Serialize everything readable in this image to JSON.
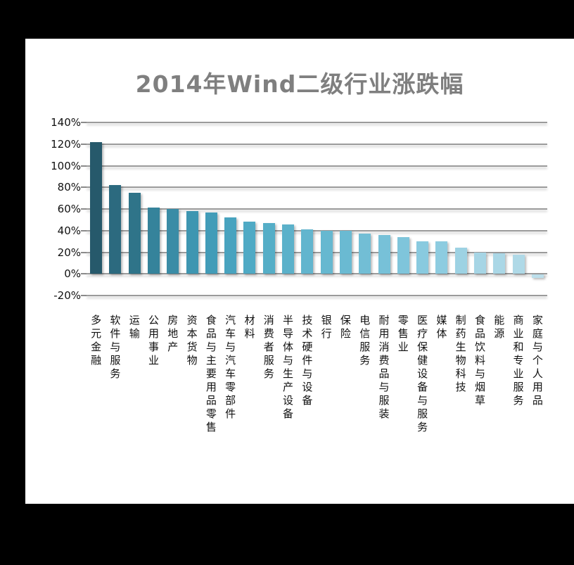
{
  "window": {
    "background_color": "#000000",
    "panel_color": "#ffffff"
  },
  "chart_data": {
    "type": "bar",
    "title": "2014年Wind二级行业涨跌幅",
    "title_color": "#7f7f7f",
    "xlabel": "",
    "ylabel": "",
    "unit": "%",
    "grid": true,
    "legend": false,
    "categories": [
      "多元金融",
      "软件与服务",
      "运输",
      "公用事业",
      "房地产",
      "资本货物",
      "食品与主要用品零售",
      "汽车与汽车零部件",
      "材料",
      "消费者服务",
      "半导体与生产设备",
      "技术硬件与设备",
      "银行",
      "保险",
      "电信服务",
      "耐用消费品与服装",
      "零售业",
      "医疗保健设备与服务",
      "媒体",
      "制药生物科技",
      "食品饮料与烟草",
      "能源",
      "商业和专业服务",
      "家庭与个人用品"
    ],
    "values": [
      122,
      82,
      75,
      61,
      60,
      58,
      57,
      52,
      48,
      47,
      46,
      41,
      40,
      40,
      37,
      36,
      34,
      30,
      30,
      24,
      20,
      19,
      18,
      -3
    ],
    "bar_colors": [
      "#26596B",
      "#2C6A7F",
      "#2F7489",
      "#35839B",
      "#3A8CA6",
      "#3E96B1",
      "#429CB8",
      "#48A3BF",
      "#4FAAC5",
      "#55AEC7",
      "#5BB1CA",
      "#62B5CE",
      "#66B8D0",
      "#6ABAD2",
      "#72BED5",
      "#77C1D8",
      "#7FC5DB",
      "#89CADF",
      "#8DCCE0",
      "#9DD2E3",
      "#A6D5E5",
      "#AAD7E6",
      "#AFD9E7",
      "#BCDFEB"
    ],
    "y_axis": {
      "tick_labels": [
        "140%",
        "120%",
        "100%",
        "80%",
        "60%",
        "40%",
        "20%",
        "0%",
        "-20%"
      ],
      "max": 140,
      "min": -20,
      "step": 20
    },
    "gridline_color": "#9b9b9b"
  }
}
